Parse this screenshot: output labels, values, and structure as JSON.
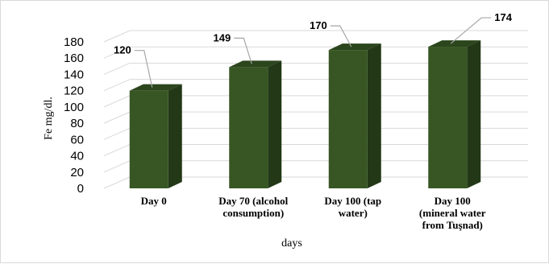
{
  "chart_data": {
    "type": "bar",
    "style": "3d-column",
    "categories": [
      [
        "Day 0"
      ],
      [
        "Day 70 (alcohol",
        "consumption)"
      ],
      [
        "Day 100 (tap",
        "water)"
      ],
      [
        "Day 100",
        "(mineral water",
        "from Tuşnad)"
      ]
    ],
    "values": [
      120,
      149,
      170,
      174
    ],
    "data_labels": [
      "120",
      "149",
      "170",
      "174"
    ],
    "yticks": [
      "0",
      "20",
      "40",
      "60",
      "80",
      "100",
      "120",
      "140",
      "160",
      "180"
    ],
    "ylim": [
      0,
      180
    ],
    "xlabel": "days",
    "ylabel": "Fe mg/dl.",
    "grid": true,
    "legend": "none",
    "colors": {
      "bar_front": "#375623",
      "bar_side": "#223817",
      "bar_top": "#2b451c",
      "grid": "#d9d9d9",
      "leader": "#a6a6a6"
    }
  }
}
